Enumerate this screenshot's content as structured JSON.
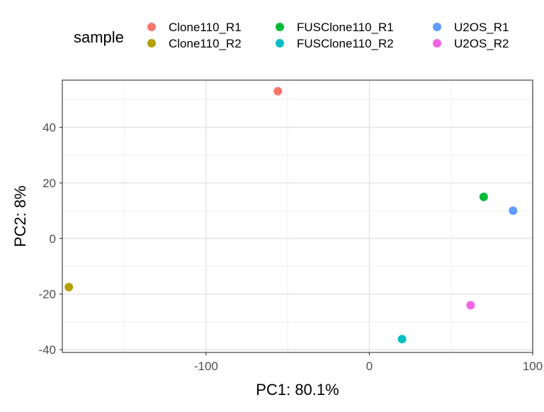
{
  "chart_data": {
    "type": "scatter",
    "title": "",
    "xlabel": "PC1: 80.1%",
    "ylabel": "PC2: 8%",
    "xlim": [
      -188,
      100
    ],
    "ylim": [
      -41,
      57
    ],
    "x_ticks": [
      -100,
      0,
      100
    ],
    "x_tick_labels": [
      "-100",
      "0",
      "100"
    ],
    "y_ticks": [
      -40,
      -20,
      0,
      20,
      40
    ],
    "y_tick_labels": [
      "-40",
      "-20",
      "0",
      "20",
      "40"
    ],
    "grid": true,
    "legend": {
      "title": "sample",
      "position": "top"
    },
    "series": [
      {
        "name": "Clone110_R1",
        "color": "#F8766D",
        "x": [
          -56
        ],
        "y": [
          53
        ]
      },
      {
        "name": "Clone110_R2",
        "color": "#B79F00",
        "x": [
          -184
        ],
        "y": [
          -17.5
        ]
      },
      {
        "name": "FUSClone110_R1",
        "color": "#00BA38",
        "x": [
          70
        ],
        "y": [
          15
        ]
      },
      {
        "name": "FUSClone110_R2",
        "color": "#00BFC4",
        "x": [
          20
        ],
        "y": [
          -36.2
        ]
      },
      {
        "name": "U2OS_R1",
        "color": "#619CFF",
        "x": [
          88
        ],
        "y": [
          10
        ]
      },
      {
        "name": "U2OS_R2",
        "color": "#F564E3",
        "x": [
          62
        ],
        "y": [
          -24
        ]
      }
    ]
  }
}
